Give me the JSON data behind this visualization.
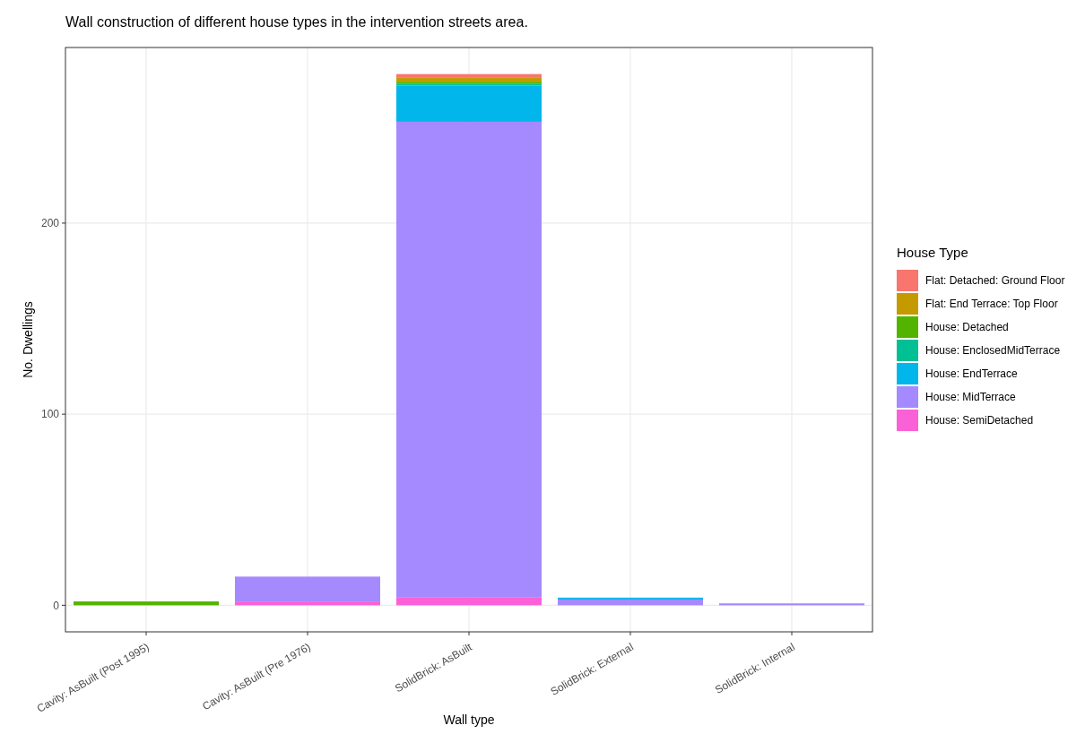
{
  "chart_data": {
    "type": "bar",
    "title": "Wall construction of different house types in the intervention streets area.",
    "xlabel": "Wall type",
    "ylabel": "No. Dwellings",
    "legend_title": "House Type",
    "categories": [
      "Cavity: AsBuilt (Post 1995)",
      "Cavity: AsBuilt (Pre 1976)",
      "SolidBrick: AsBuilt",
      "SolidBrick: External",
      "SolidBrick: Internal"
    ],
    "stacked": true,
    "ylim": [
      -13.9,
      291.9
    ],
    "yticks": [
      0,
      100,
      200
    ],
    "grid": true,
    "legend": "right",
    "series": [
      {
        "name": "House: SemiDetached",
        "color": "#fb61d7",
        "values": [
          0,
          2,
          4,
          0,
          0
        ]
      },
      {
        "name": "House: MidTerrace",
        "color": "#a58aff",
        "values": [
          0,
          13,
          249,
          3,
          1
        ]
      },
      {
        "name": "House: EndTerrace",
        "color": "#00b6eb",
        "values": [
          0,
          0,
          19,
          1,
          0
        ]
      },
      {
        "name": "House: EnclosedMidTerrace",
        "color": "#00c094",
        "values": [
          0,
          0,
          1,
          0,
          0
        ]
      },
      {
        "name": "House: Detached",
        "color": "#53b400",
        "values": [
          2,
          0,
          1,
          0,
          0
        ]
      },
      {
        "name": "Flat: End Terrace: Top Floor",
        "color": "#c49a00",
        "values": [
          0,
          0,
          2,
          0,
          0
        ]
      },
      {
        "name": "Flat: Detached: Ground Floor",
        "color": "#f8766d",
        "values": [
          0,
          0,
          2,
          0,
          0
        ]
      }
    ]
  }
}
